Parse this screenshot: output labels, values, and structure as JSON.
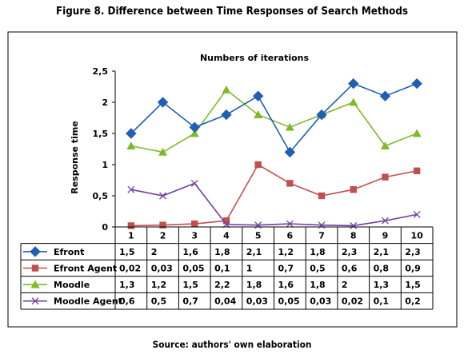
{
  "figure_title": "Figure 8. Difference between Time Responses of Search Methods",
  "source": "Source: authors' own elaboration",
  "chart_data": {
    "type": "line",
    "title": "Numbers of iterations",
    "xlabel": "",
    "ylabel": "Response time",
    "categories": [
      "1",
      "2",
      "3",
      "4",
      "5",
      "6",
      "7",
      "8",
      "9",
      "10"
    ],
    "ylim": [
      0,
      2.5
    ],
    "yticks": [
      0,
      0.5,
      1,
      1.5,
      2,
      2.5
    ],
    "ytick_labels": [
      "0",
      "0,5",
      "1",
      "1,5",
      "2",
      "2,5"
    ],
    "grid": false,
    "legend": "data-table",
    "series": [
      {
        "name": "Efront",
        "color": "#1f5fb4",
        "marker": "diamond",
        "values": [
          1.5,
          2,
          1.6,
          1.8,
          2.1,
          1.2,
          1.8,
          2.3,
          2.1,
          2.3
        ],
        "labels": [
          "1,5",
          "2",
          "1,6",
          "1,8",
          "2,1",
          "1,2",
          "1,8",
          "2,3",
          "2,1",
          "2,3"
        ]
      },
      {
        "name": "Efront Agent",
        "color": "#c0504d",
        "marker": "square",
        "values": [
          0.02,
          0.03,
          0.05,
          0.1,
          1,
          0.7,
          0.5,
          0.6,
          0.8,
          0.9
        ],
        "labels": [
          "0,02",
          "0,03",
          "0,05",
          "0,1",
          "1",
          "0,7",
          "0,5",
          "0,6",
          "0,8",
          "0,9"
        ]
      },
      {
        "name": "Moodle",
        "color": "#7fba2a",
        "marker": "triangle",
        "values": [
          1.3,
          1.2,
          1.5,
          2.2,
          1.8,
          1.6,
          1.8,
          2,
          1.3,
          1.5
        ],
        "labels": [
          "1,3",
          "1,2",
          "1,5",
          "2,2",
          "1,8",
          "1,6",
          "1,8",
          "2",
          "1,3",
          "1,5"
        ]
      },
      {
        "name": "Moodle Agent",
        "color": "#7040a0",
        "marker": "x",
        "values": [
          0.6,
          0.5,
          0.7,
          0.04,
          0.03,
          0.05,
          0.03,
          0.02,
          0.1,
          0.2
        ],
        "labels": [
          "0,6",
          "0,5",
          "0,7",
          "0,04",
          "0,03",
          "0,05",
          "0,03",
          "0,02",
          "0,1",
          "0,2"
        ]
      }
    ]
  }
}
